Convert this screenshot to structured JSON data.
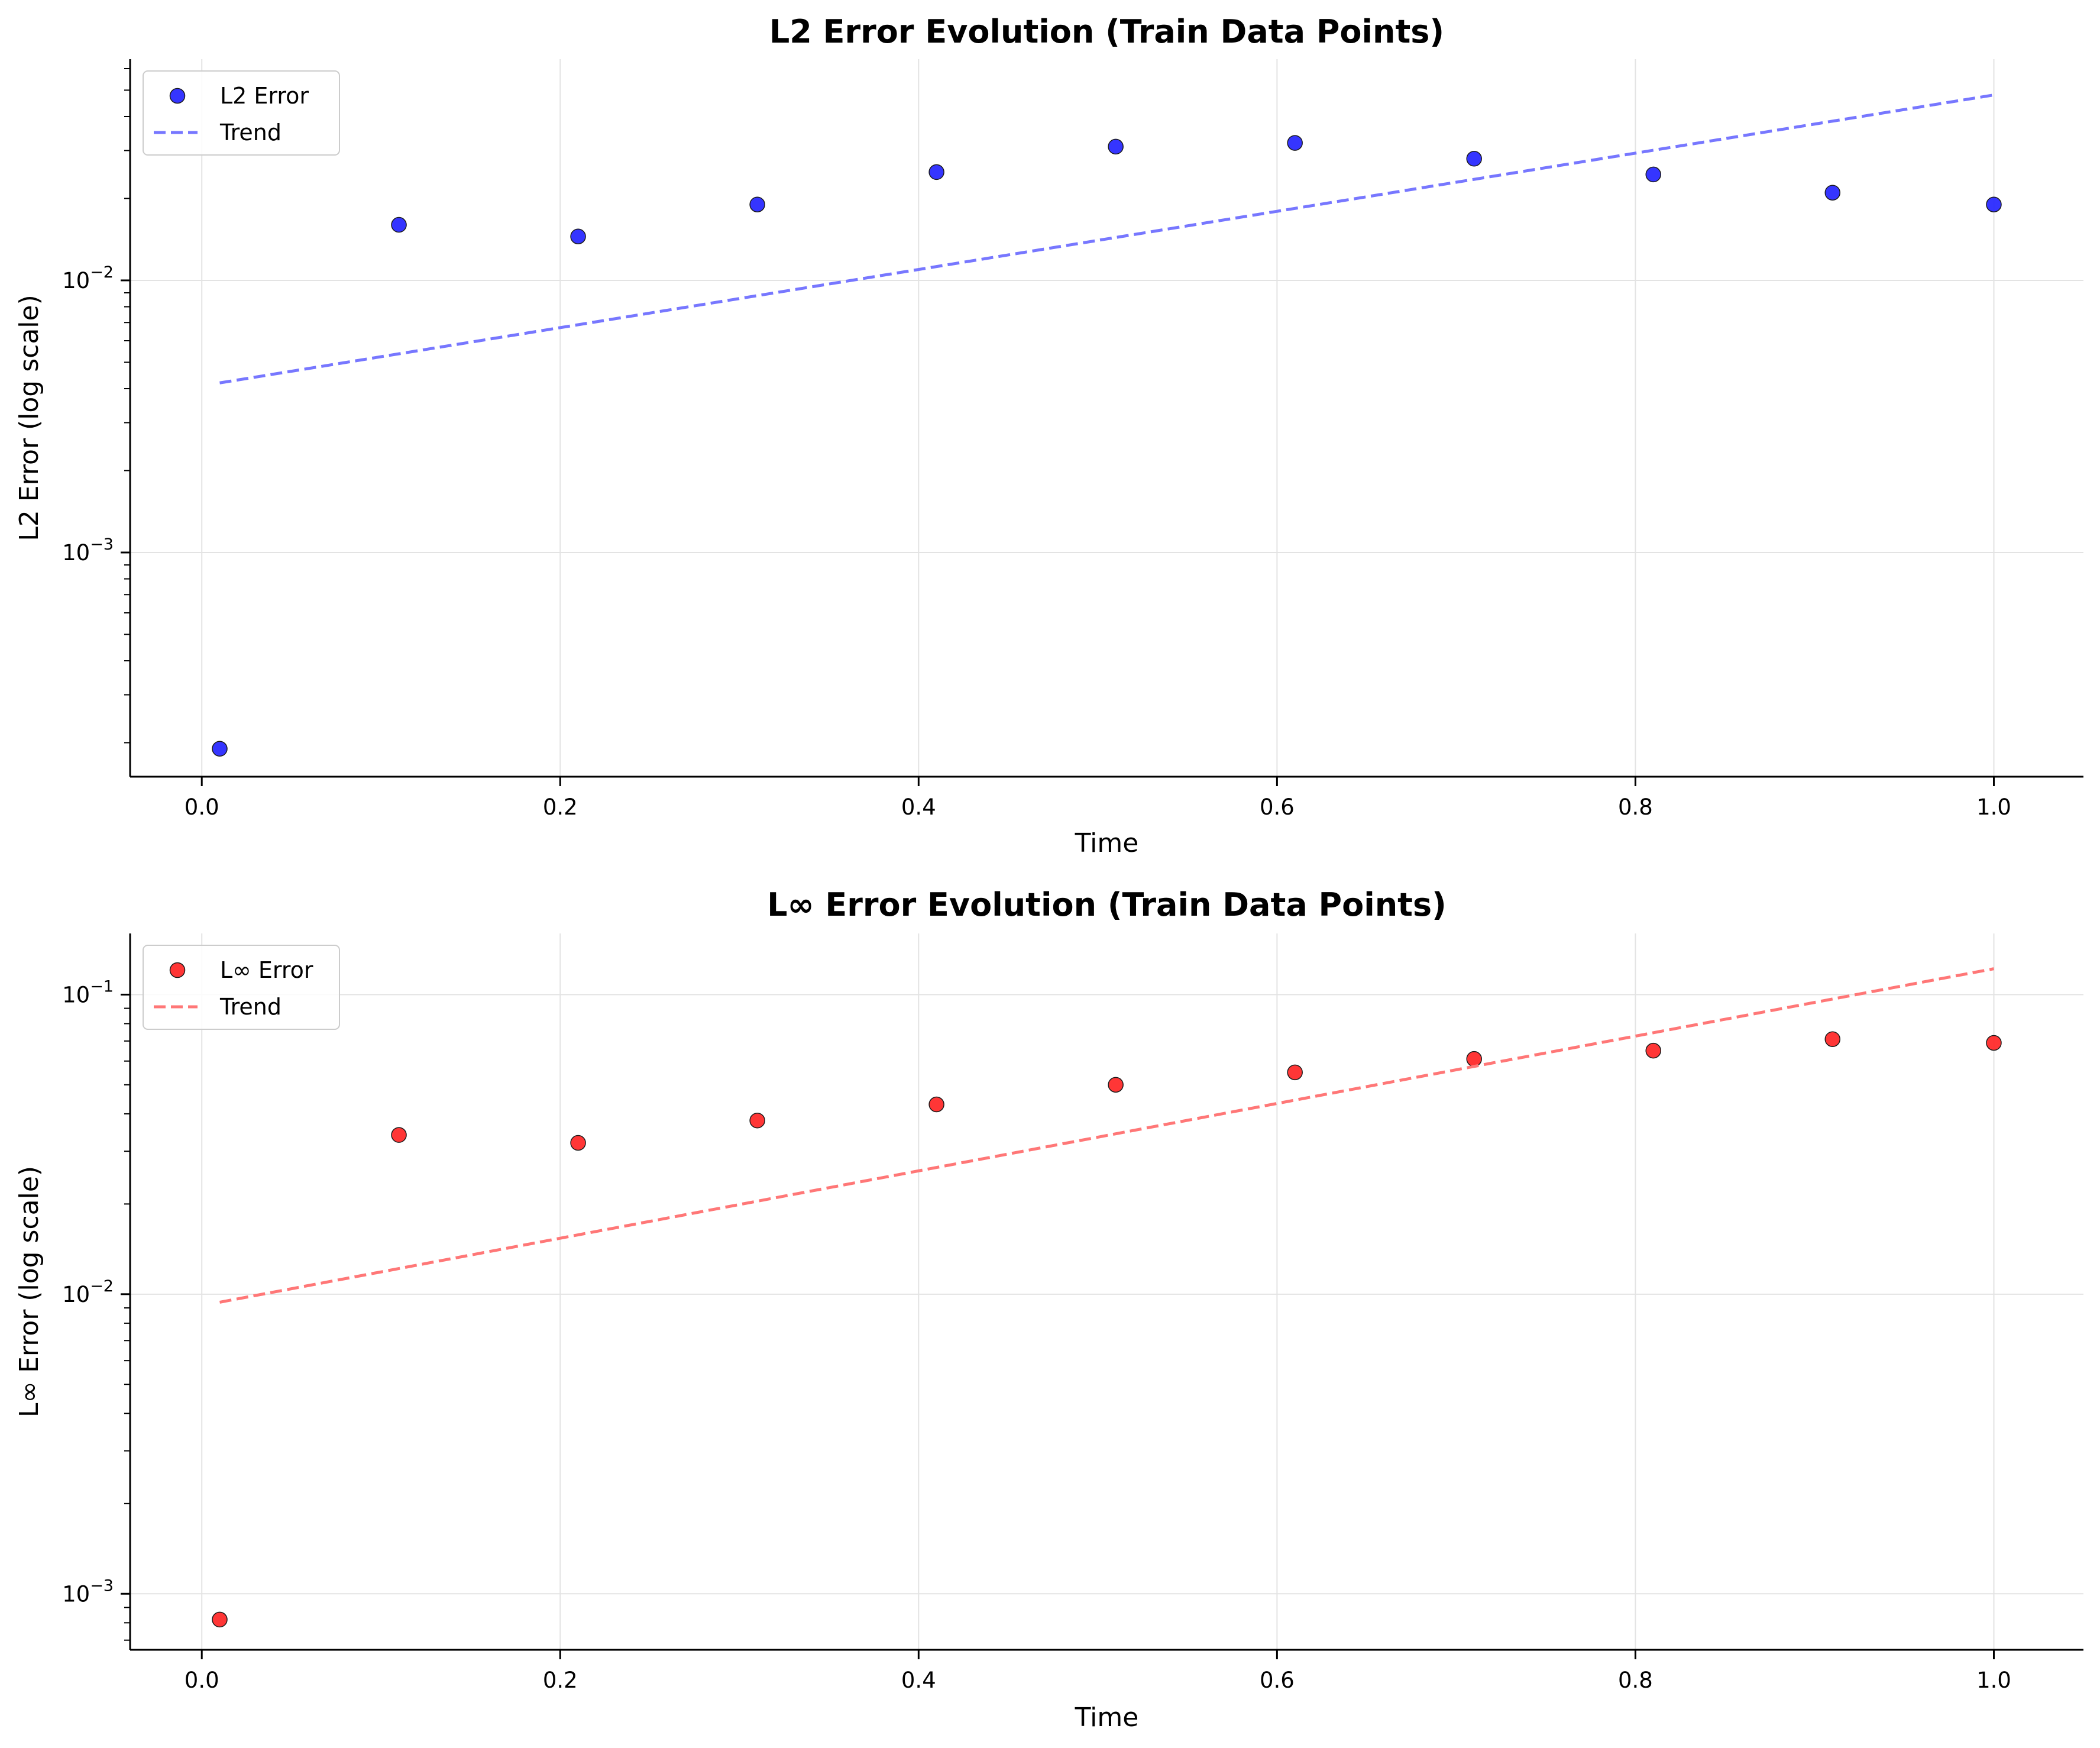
{
  "chart_data": [
    {
      "type": "scatter",
      "title": "L2 Error Evolution (Train Data Points)",
      "xlabel": "Time",
      "ylabel": "L2 Error (log scale)",
      "xlim": [
        -0.04,
        1.05
      ],
      "ylim": [
        0.00015,
        0.065
      ],
      "yscale": "log",
      "grid": true,
      "legend_position": "top-left",
      "x_ticks": [
        0.0,
        0.2,
        0.4,
        0.6,
        0.8,
        1.0
      ],
      "x_tick_labels": [
        "0.0",
        "0.2",
        "0.4",
        "0.6",
        "0.8",
        "1.0"
      ],
      "y_ticks": [
        0.001,
        0.01
      ],
      "y_tick_labels": [
        {
          "base": "10",
          "exp": "−3"
        },
        {
          "base": "10",
          "exp": "−2"
        }
      ],
      "series": [
        {
          "name": "L2 Error",
          "kind": "scatter",
          "color": "#1f1fff",
          "x": [
            0.01,
            0.11,
            0.21,
            0.31,
            0.41,
            0.51,
            0.61,
            0.71,
            0.81,
            0.91,
            1.0
          ],
          "y": [
            0.00019,
            0.016,
            0.0145,
            0.019,
            0.025,
            0.031,
            0.032,
            0.028,
            0.0245,
            0.021,
            0.019
          ]
        },
        {
          "name": "Trend",
          "kind": "line",
          "style": "dashed",
          "color": "#7777ff",
          "x": [
            0.01,
            1.0
          ],
          "y": [
            0.0042,
            0.048
          ]
        }
      ]
    },
    {
      "type": "scatter",
      "title": "L∞ Error Evolution (Train Data Points)",
      "xlabel": "Time",
      "ylabel": "L∞ Error (log scale)",
      "xlim": [
        -0.04,
        1.05
      ],
      "ylim": [
        0.00065,
        0.16
      ],
      "yscale": "log",
      "grid": true,
      "legend_position": "top-left",
      "x_ticks": [
        0.0,
        0.2,
        0.4,
        0.6,
        0.8,
        1.0
      ],
      "x_tick_labels": [
        "0.0",
        "0.2",
        "0.4",
        "0.6",
        "0.8",
        "1.0"
      ],
      "y_ticks": [
        0.001,
        0.01,
        0.1
      ],
      "y_tick_labels": [
        {
          "base": "10",
          "exp": "−3"
        },
        {
          "base": "10",
          "exp": "−2"
        },
        {
          "base": "10",
          "exp": "−1"
        }
      ],
      "series": [
        {
          "name": "L∞ Error",
          "kind": "scatter",
          "color": "#ff2020",
          "x": [
            0.01,
            0.11,
            0.21,
            0.31,
            0.41,
            0.51,
            0.61,
            0.71,
            0.81,
            0.91,
            1.0
          ],
          "y": [
            0.00082,
            0.034,
            0.032,
            0.038,
            0.043,
            0.05,
            0.055,
            0.061,
            0.065,
            0.071,
            0.069
          ]
        },
        {
          "name": "Trend",
          "kind": "line",
          "style": "dashed",
          "color": "#ff7777",
          "x": [
            0.01,
            1.0
          ],
          "y": [
            0.0094,
            0.122
          ]
        }
      ]
    }
  ]
}
